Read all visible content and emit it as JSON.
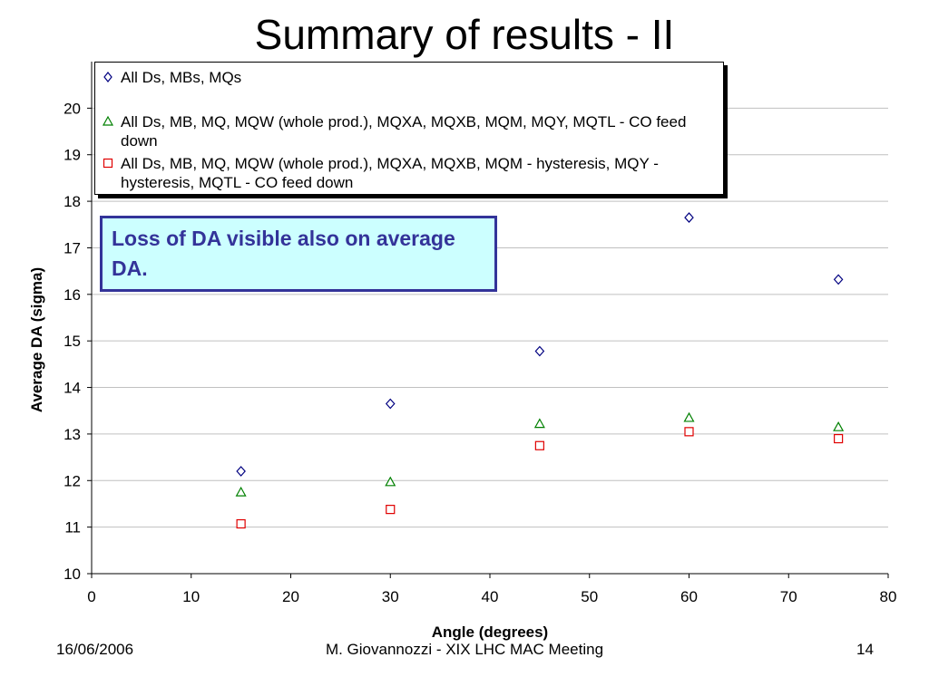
{
  "slide": {
    "title": "Summary of results - II",
    "footer_date": "16/06/2006",
    "footer_center": "M. Giovannozzi - XIX LHC MAC Meeting",
    "page_number": "14"
  },
  "callout": {
    "text": "Loss of DA visible also on average DA."
  },
  "colors": {
    "series_blue": "#000080",
    "series_green": "#008000",
    "series_red": "#e00000",
    "callout_fill": "#ccffff",
    "callout_text": "#333399",
    "grid": "#c0c0c0"
  },
  "chart_data": {
    "type": "scatter",
    "title": "",
    "xlabel": "Angle (degrees)",
    "ylabel": "Average DA (sigma)",
    "xlim": [
      0,
      80
    ],
    "ylim": [
      10,
      21
    ],
    "x_ticks": [
      0,
      10,
      20,
      30,
      40,
      50,
      60,
      70,
      80
    ],
    "y_ticks": [
      10,
      11,
      12,
      13,
      14,
      15,
      16,
      17,
      18,
      19,
      20
    ],
    "grid": "horizontal",
    "legend_position": "top",
    "x": [
      15,
      30,
      45,
      60,
      75
    ],
    "series": [
      {
        "name": "All Ds, MBs, MQs",
        "marker": "diamond",
        "color": "#000080",
        "values": [
          12.2,
          13.65,
          14.78,
          17.65,
          16.32
        ]
      },
      {
        "name": "All Ds, MB, MQ, MQW (whole prod.), MQXA, MQXB, MQM, MQY, MQTL - CO feed down",
        "marker": "triangle",
        "color": "#008000",
        "values": [
          11.75,
          11.97,
          13.22,
          13.35,
          13.15
        ]
      },
      {
        "name": "All Ds, MB, MQ, MQW (whole prod.), MQXA, MQXB, MQM - hysteresis, MQY - hysteresis, MQTL - CO feed down",
        "marker": "square",
        "color": "#e00000",
        "values": [
          11.07,
          11.38,
          12.75,
          13.05,
          12.9
        ]
      }
    ]
  }
}
